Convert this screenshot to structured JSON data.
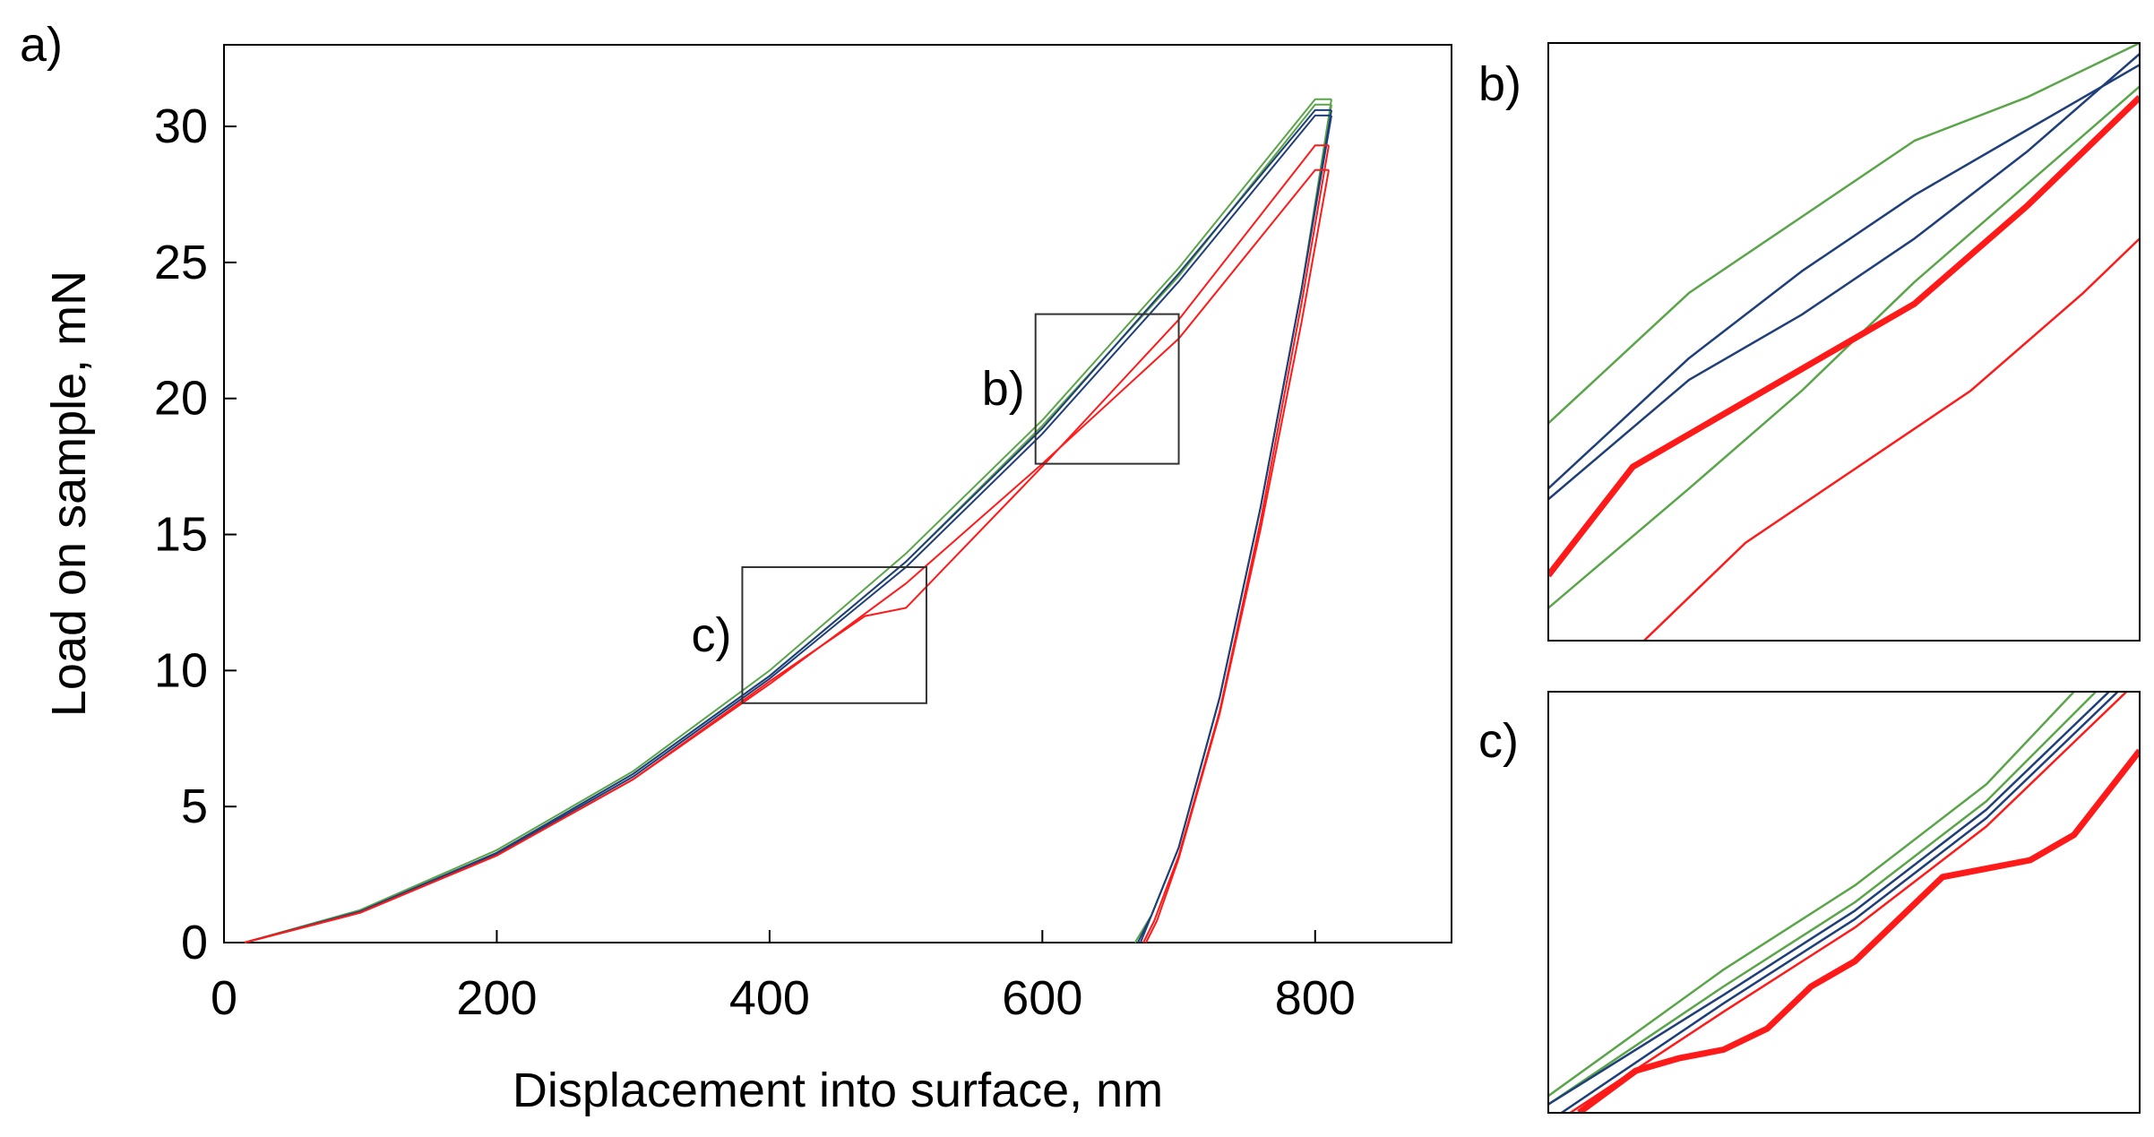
{
  "chart_data": [
    {
      "panel": "a)",
      "type": "line",
      "title": "",
      "xlabel": "Displacement into surface, nm",
      "ylabel": "Load on sample, mN",
      "xlim": [
        0,
        900
      ],
      "ylim": [
        0,
        33
      ],
      "xticks": [
        "0",
        "200",
        "400",
        "600",
        "800"
      ],
      "yticks": [
        "0",
        "5",
        "10",
        "15",
        "20",
        "25",
        "30"
      ],
      "grid": false,
      "legend": "none",
      "colors": {
        "green": "#5aa54a",
        "blue": "#1f3f7a",
        "red": "#ff1a1a"
      },
      "series": [
        {
          "color": "green",
          "loading": {
            "x": [
              15,
              100,
              200,
              300,
              400,
              500,
              600,
              700,
              800,
              812
            ],
            "y": [
              0,
              1.2,
              3.4,
              6.3,
              10.0,
              14.3,
              19.2,
              24.8,
              31.0,
              31.0
            ]
          },
          "unloading": {
            "x": [
              812,
              790,
              760,
              730,
              700,
              680,
              668
            ],
            "y": [
              31.0,
              24,
              16,
              9,
              3.5,
              1,
              0
            ]
          }
        },
        {
          "color": "green",
          "loading": {
            "x": [
              15,
              100,
              200,
              300,
              400,
              500,
              600,
              700,
              800,
              812
            ],
            "y": [
              0,
              1.15,
              3.3,
              6.2,
              9.8,
              14.0,
              19.0,
              24.5,
              30.8,
              30.8
            ]
          },
          "unloading": {
            "x": [
              812,
              790,
              760,
              730,
              700,
              680,
              668
            ],
            "y": [
              30.8,
              24,
              16,
              9,
              3.5,
              1,
              0
            ]
          }
        },
        {
          "color": "blue",
          "loading": {
            "x": [
              15,
              100,
              200,
              300,
              400,
              500,
              600,
              700,
              800,
              812
            ],
            "y": [
              0,
              1.15,
              3.3,
              6.2,
              9.8,
              14.0,
              18.9,
              24.6,
              30.6,
              30.6
            ]
          },
          "unloading": {
            "x": [
              812,
              790,
              760,
              730,
              700,
              680,
              670
            ],
            "y": [
              30.6,
              24,
              16,
              9,
              3.5,
              1,
              0
            ]
          }
        },
        {
          "color": "blue",
          "loading": {
            "x": [
              15,
              100,
              200,
              300,
              400,
              500,
              600,
              700,
              800,
              812
            ],
            "y": [
              0,
              1.1,
              3.25,
              6.1,
              9.7,
              13.8,
              18.7,
              24.3,
              30.4,
              30.4
            ]
          },
          "unloading": {
            "x": [
              812,
              790,
              760,
              730,
              700,
              680,
              672
            ],
            "y": [
              30.4,
              24,
              16,
              9,
              3.5,
              1,
              0
            ]
          }
        },
        {
          "color": "red",
          "loading": {
            "x": [
              15,
              100,
              200,
              300,
              400,
              470,
              500,
              600,
              700,
              800,
              810
            ],
            "y": [
              0,
              1.1,
              3.2,
              6.0,
              9.6,
              12.0,
              12.3,
              17.5,
              22.9,
              29.3,
              29.3
            ]
          },
          "unloading": {
            "x": [
              810,
              790,
              760,
              730,
              700,
              682,
              674
            ],
            "y": [
              29.3,
              23.5,
              15.5,
              8.5,
              3.2,
              0.8,
              0
            ]
          }
        },
        {
          "color": "red",
          "loading": {
            "x": [
              15,
              100,
              200,
              300,
              400,
              500,
              600,
              700,
              800,
              810
            ],
            "y": [
              0,
              1.1,
              3.2,
              6.0,
              9.5,
              13.2,
              17.6,
              22.2,
              28.4,
              28.4
            ]
          },
          "unloading": {
            "x": [
              810,
              790,
              760,
              730,
              700,
              684,
              676
            ],
            "y": [
              28.4,
              22.8,
              15.2,
              8.4,
              3.1,
              0.8,
              0
            ]
          }
        }
      ],
      "zoom_boxes": [
        {
          "label": "b)",
          "xlim": [
            595,
            700
          ],
          "ylim": [
            17.6,
            23.1
          ]
        },
        {
          "label": "c)",
          "xlim": [
            380,
            515
          ],
          "ylim": [
            8.8,
            13.8
          ]
        }
      ]
    },
    {
      "panel": "b)",
      "type": "line",
      "title": "",
      "xlabel": "",
      "ylabel": "",
      "xlim": [
        595,
        700
      ],
      "ylim": [
        17.6,
        23.1
      ],
      "series": [
        {
          "color": "green",
          "x": [
            595,
            620,
            640,
            660,
            680,
            700
          ],
          "y": [
            19.6,
            20.8,
            21.5,
            22.2,
            22.6,
            23.1
          ]
        },
        {
          "color": "green",
          "x": [
            595,
            620,
            640,
            660,
            680,
            700
          ],
          "y": [
            17.9,
            19.0,
            19.9,
            20.9,
            21.8,
            22.7
          ]
        },
        {
          "color": "blue",
          "x": [
            595,
            620,
            640,
            660,
            680,
            700
          ],
          "y": [
            19.0,
            20.2,
            21.0,
            21.7,
            22.3,
            22.9
          ]
        },
        {
          "color": "blue",
          "x": [
            595,
            620,
            640,
            660,
            680,
            700
          ],
          "y": [
            18.9,
            20.0,
            20.6,
            21.3,
            22.1,
            23.0
          ]
        },
        {
          "color": "red",
          "thick": true,
          "x": [
            595,
            610,
            620,
            640,
            660,
            680,
            700
          ],
          "y": [
            18.2,
            19.2,
            19.5,
            20.1,
            20.7,
            21.6,
            22.6
          ]
        },
        {
          "color": "red",
          "x": [
            612,
            630,
            650,
            670,
            690,
            700
          ],
          "y": [
            17.6,
            18.5,
            19.2,
            19.9,
            20.8,
            21.3
          ]
        }
      ]
    },
    {
      "panel": "c)",
      "type": "line",
      "title": "",
      "xlabel": "",
      "ylabel": "",
      "xlim": [
        380,
        515
      ],
      "ylim": [
        8.8,
        13.8
      ],
      "series": [
        {
          "color": "green",
          "x": [
            380,
            420,
            450,
            480,
            500
          ],
          "y": [
            9.0,
            10.5,
            11.5,
            12.7,
            13.8
          ]
        },
        {
          "color": "green",
          "x": [
            380,
            420,
            450,
            480,
            505
          ],
          "y": [
            8.9,
            10.3,
            11.3,
            12.5,
            13.8
          ]
        },
        {
          "color": "blue",
          "x": [
            380,
            420,
            450,
            480,
            508
          ],
          "y": [
            8.9,
            10.2,
            11.2,
            12.4,
            13.8
          ]
        },
        {
          "color": "blue",
          "x": [
            383,
            420,
            450,
            480,
            510
          ],
          "y": [
            8.8,
            10.1,
            11.1,
            12.3,
            13.8
          ]
        },
        {
          "color": "red",
          "x": [
            385,
            420,
            450,
            480,
            512
          ],
          "y": [
            8.8,
            10.0,
            11.0,
            12.2,
            13.8
          ]
        },
        {
          "color": "red",
          "thick": true,
          "x": [
            387,
            400,
            410,
            420,
            430,
            440,
            450,
            460,
            470,
            480,
            490,
            500,
            515
          ],
          "y": [
            8.8,
            9.3,
            9.45,
            9.55,
            9.8,
            10.3,
            10.6,
            11.1,
            11.6,
            11.7,
            11.8,
            12.1,
            13.1
          ]
        }
      ]
    }
  ]
}
